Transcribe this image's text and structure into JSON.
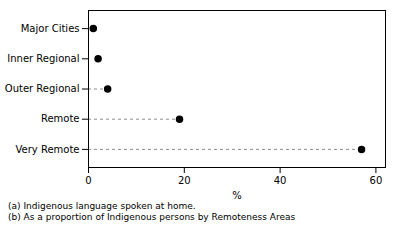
{
  "chart_data": {
    "type": "dot",
    "orientation": "horizontal",
    "categories": [
      "Very Remote",
      "Remote",
      "Outer Regional",
      "Inner Regional",
      "Major Cities"
    ],
    "values": [
      57,
      19,
      4,
      2,
      1
    ],
    "dashed": [
      true,
      true,
      true,
      false,
      false
    ],
    "line_style": "dashed",
    "color": "#000000",
    "xlim": [
      0,
      62
    ],
    "xticks": [
      0,
      20,
      40,
      60
    ],
    "xlabel": "%",
    "grid": false,
    "annotations": [
      "(a) Indigenous language spoken at home.",
      "(b) As a proportion of Indigenous persons by Remoteness Areas"
    ]
  }
}
